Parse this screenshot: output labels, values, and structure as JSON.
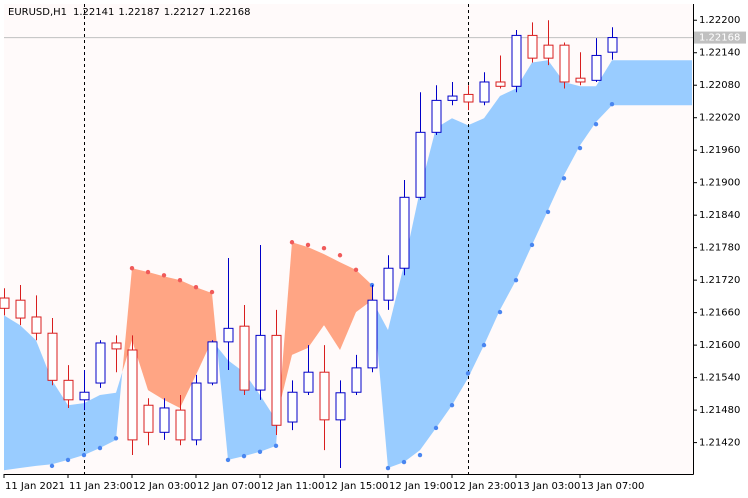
{
  "chart_data": {
    "type": "candlestick",
    "title": "EURUSD,H1",
    "categories": [
      "11 Jan 2021",
      null,
      null,
      null,
      "11 Jan 23:00",
      null,
      null,
      null,
      "12 Jan 03:00",
      null,
      null,
      null,
      "12 Jan 07:00",
      null,
      null,
      null,
      "12 Jan 11:00",
      null,
      null,
      null,
      "12 Jan 15:00",
      null,
      null,
      null,
      "12 Jan 19:00",
      null,
      null,
      null,
      "12 Jan 23:00",
      null,
      null,
      null,
      "13 Jan 03:00",
      null,
      null,
      null,
      "13 Jan 07:00",
      null,
      null
    ],
    "ohlc": {
      "open": [
        1.21687,
        1.21683,
        1.21652,
        1.21622,
        1.21535,
        1.21499,
        1.2153,
        1.21604,
        1.21591,
        1.21489,
        1.21439,
        1.2148,
        1.21425,
        1.2153,
        1.21606,
        1.21635,
        1.21517,
        1.21618,
        1.21458,
        1.21513,
        1.2155,
        1.21462,
        1.21513,
        1.21558,
        1.21683,
        1.21742,
        1.21873,
        1.21993,
        1.22052,
        1.22063,
        1.22049,
        1.22086,
        1.22078,
        1.22172,
        1.22154,
        1.22154,
        1.22093,
        1.22089,
        1.22141
      ],
      "high": [
        1.21705,
        1.21711,
        1.21692,
        1.2165,
        1.21563,
        1.21554,
        1.21609,
        1.21618,
        1.21618,
        1.21502,
        1.21502,
        1.21508,
        1.21545,
        1.21609,
        1.21761,
        1.21674,
        1.21785,
        1.21665,
        1.21535,
        1.216,
        1.216,
        1.21535,
        1.21582,
        1.21711,
        1.21766,
        1.21905,
        1.22067,
        1.2208,
        1.22086,
        1.2208,
        1.22104,
        1.22135,
        1.22182,
        1.22196,
        1.222,
        1.22159,
        1.22141,
        1.22167,
        1.22187
      ],
      "low": [
        1.21655,
        1.21637,
        1.21609,
        1.21526,
        1.21484,
        1.2148,
        1.21521,
        1.2155,
        1.21397,
        1.21415,
        1.21425,
        1.21415,
        1.21415,
        1.21526,
        1.21554,
        1.21508,
        1.21499,
        1.21434,
        1.21443,
        1.21508,
        1.21406,
        1.21373,
        1.21508,
        1.2155,
        1.21665,
        1.21729,
        1.21868,
        1.21988,
        1.22043,
        1.22034,
        1.22043,
        1.22074,
        1.22067,
        1.22122,
        1.22117,
        1.22074,
        1.2208,
        1.22086,
        1.22127
      ],
      "close": [
        1.21668,
        1.2165,
        1.21622,
        1.21535,
        1.21499,
        1.21513,
        1.21604,
        1.21593,
        1.21425,
        1.21439,
        1.21484,
        1.21425,
        1.2153,
        1.21606,
        1.21631,
        1.21517,
        1.21618,
        1.21452,
        1.21513,
        1.2155,
        1.21462,
        1.21512,
        1.21558,
        1.21683,
        1.21742,
        1.21873,
        1.21993,
        1.22052,
        1.2206,
        1.22049,
        1.22086,
        1.22078,
        1.22172,
        1.2213,
        1.2213,
        1.22086,
        1.22086,
        1.22135,
        1.22168
      ],
      "up_color": "#0000c8",
      "down_color": "#d81e1e"
    },
    "cloud": {
      "span_a": [
        1.21655,
        1.21637,
        1.21609,
        1.21535,
        1.21489,
        1.21493,
        1.21508,
        1.21512,
        1.21609,
        1.21517,
        1.21499,
        1.21484,
        1.21545,
        1.21609,
        1.21572,
        1.2155,
        1.21508,
        1.21462,
        1.21582,
        1.21595,
        1.21637,
        1.21591,
        1.21661,
        1.21683,
        1.21628,
        1.21748,
        1.21886,
        1.22001,
        1.22019,
        1.22006,
        1.22019,
        1.2206,
        1.22074,
        1.22122,
        1.22126,
        1.22086,
        1.22078,
        1.22078,
        1.22126,
        1.22126,
        1.22126,
        1.22126,
        1.22126,
        1.22126
      ],
      "span_b": [
        1.21369,
        1.21373,
        1.21377,
        1.2138,
        1.21388,
        1.21397,
        1.2141,
        1.21425,
        1.21742,
        1.21735,
        1.21727,
        1.2172,
        1.21707,
        1.21696,
        1.21388,
        1.21395,
        1.21403,
        1.21414,
        1.2179,
        1.21781,
        1.21768,
        1.21753,
        1.21739,
        1.21711,
        1.21373,
        1.21384,
        1.21406,
        1.21447,
        1.21489,
        1.21539,
        1.216,
        1.21665,
        1.2172,
        1.21785,
        1.21849,
        1.21914,
        1.21969,
        1.22012,
        1.22043,
        1.22043,
        1.22043,
        1.22043,
        1.22043,
        1.22043
      ],
      "up_color": "#99ccff",
      "down_color": "#ffa584"
    },
    "sar": {
      "values": [
        null,
        null,
        null,
        1.21377,
        1.21388,
        1.21397,
        1.2141,
        1.21428,
        1.21742,
        1.21735,
        1.21729,
        1.2172,
        1.21707,
        1.21698,
        1.21388,
        1.21395,
        1.21403,
        1.21414,
        1.2179,
        1.21785,
        1.21779,
        1.21766,
        1.21739,
        1.21711,
        1.21373,
        1.21384,
        1.21397,
        1.21447,
        1.21489,
        1.21548,
        1.216,
        1.21661,
        1.2172,
        1.21785,
        1.21846,
        1.21908,
        1.21964,
        1.22008,
        1.22045
      ],
      "color_above": "#f05a5a",
      "color_below": "#4a86f0"
    },
    "price_line_color": "#c0c0c0",
    "ylim": [
      1.21362,
      1.2223
    ],
    "yticks": [
      {
        "value": 1.222,
        "label": "1.22200"
      },
      {
        "value": 1.2214,
        "label": "1.22140"
      },
      {
        "value": 1.2208,
        "label": "1.22080"
      },
      {
        "value": 1.2202,
        "label": "1.22020"
      },
      {
        "value": 1.2196,
        "label": "1.21960"
      },
      {
        "value": 1.219,
        "label": "1.21900"
      },
      {
        "value": 1.2184,
        "label": "1.21840"
      },
      {
        "value": 1.2178,
        "label": "1.21780"
      },
      {
        "value": 1.2172,
        "label": "1.21720"
      },
      {
        "value": 1.2166,
        "label": "1.21660"
      },
      {
        "value": 1.216,
        "label": "1.21600"
      },
      {
        "value": 1.2154,
        "label": "1.21540"
      },
      {
        "value": 1.2148,
        "label": "1.21480"
      },
      {
        "value": 1.2142,
        "label": "1.21420"
      }
    ]
  }
}
